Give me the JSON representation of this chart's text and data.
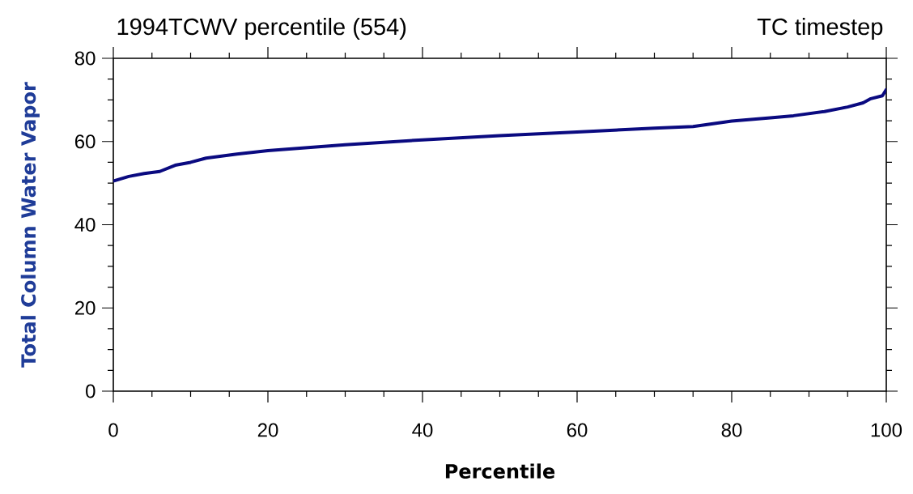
{
  "chart_data": {
    "type": "line",
    "title": "1994TCWV percentile  (554)",
    "subtitle": "TC timestep",
    "xlabel": "Percentile",
    "ylabel": "Total Column Water Vapor",
    "x": [
      0,
      2,
      4,
      6,
      8,
      10,
      12,
      16,
      20,
      30,
      40,
      50,
      60,
      70,
      75,
      80,
      85,
      88,
      92,
      95,
      97,
      98,
      99.5,
      100
    ],
    "series": [
      {
        "color": "#0a0a80",
        "values": [
          50.5,
          51.6,
          52.3,
          52.8,
          54.3,
          55,
          56,
          57,
          57.8,
          59.2,
          60.4,
          61.4,
          62.3,
          63.2,
          63.6,
          64.9,
          65.7,
          66.2,
          67.2,
          68.3,
          69.3,
          70.3,
          71,
          72.5
        ]
      }
    ],
    "xlim": [
      0,
      100
    ],
    "ylim": [
      0,
      80
    ],
    "xticks": [
      0,
      20,
      40,
      60,
      80,
      100
    ],
    "yticks": [
      0,
      20,
      40,
      60,
      80
    ],
    "grid": false,
    "marker": "none",
    "line_style": "solid"
  }
}
